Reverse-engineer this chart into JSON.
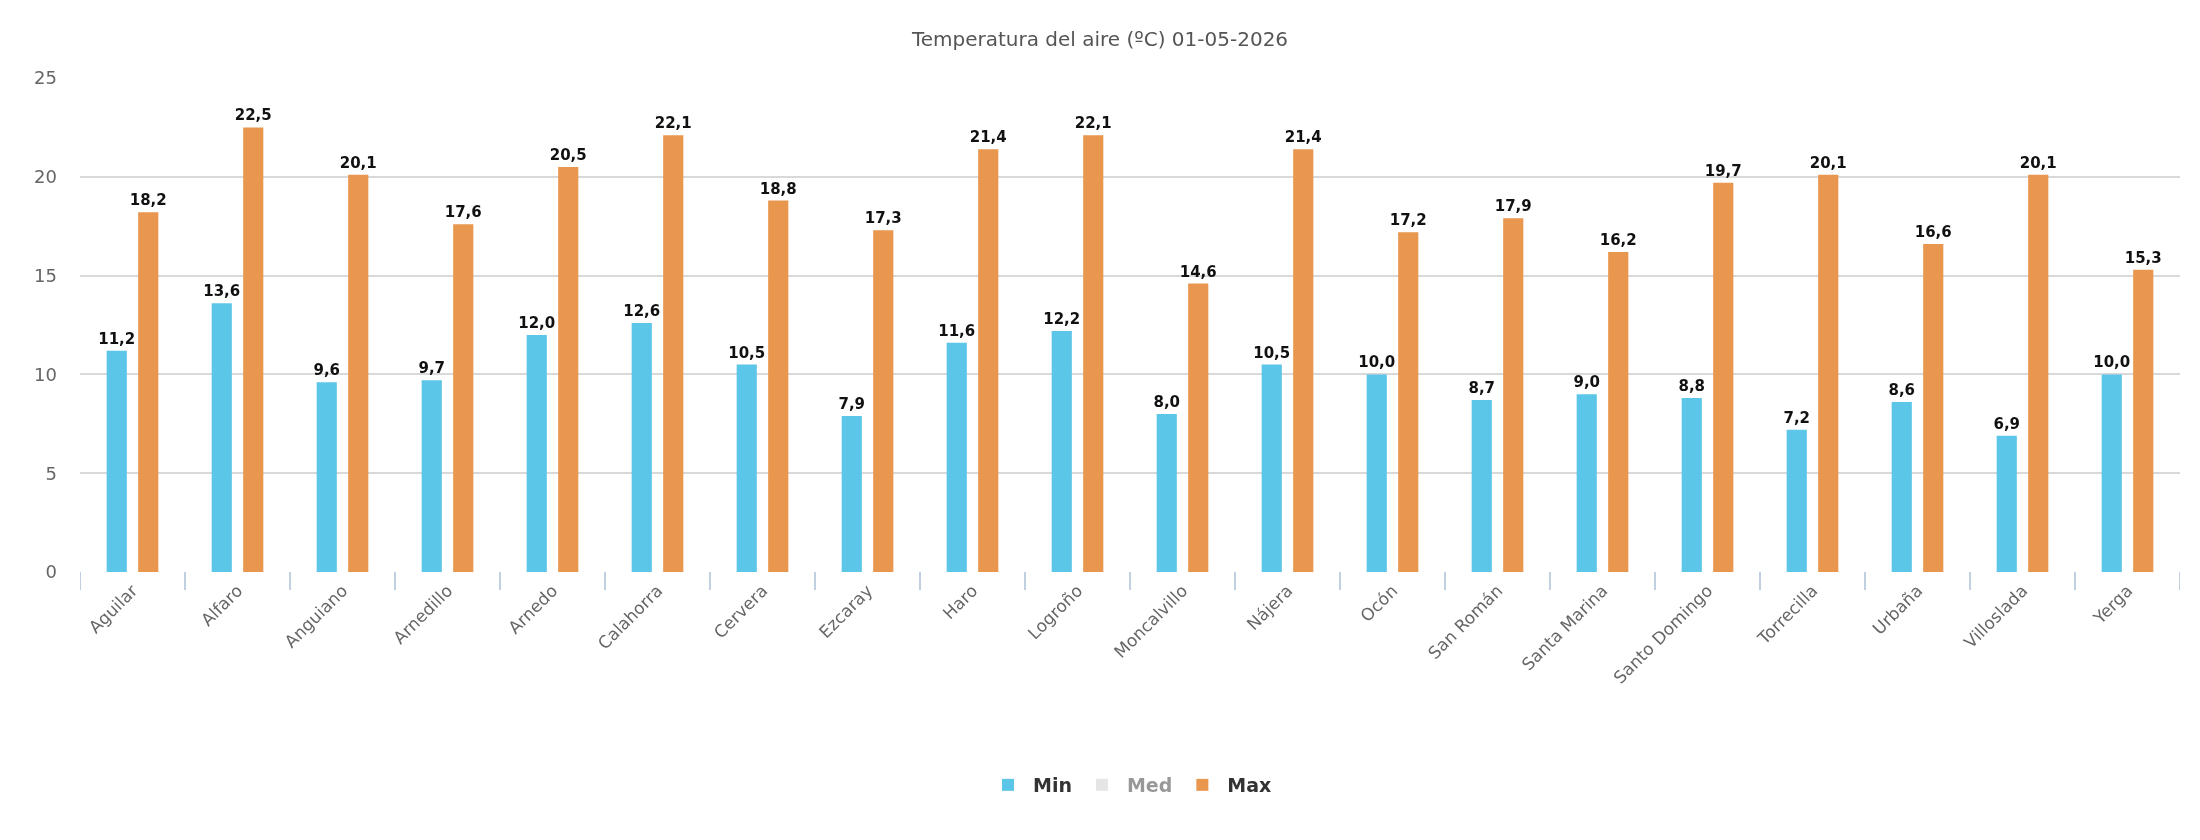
{
  "chart_data": {
    "type": "bar",
    "title": "Temperatura del aire (ºC) 01-05-2026",
    "categories": [
      "Aguilar",
      "Alfaro",
      "Anguiano",
      "Arnedillo",
      "Arnedo",
      "Calahorra",
      "Cervera",
      "Ezcaray",
      "Haro",
      "Logroño",
      "Moncalvillo",
      "Nájera",
      "Ocón",
      "San Román",
      "Santa Marina",
      "Santo Domingo",
      "Torrecilla",
      "Urbaña",
      "Villoslada",
      "Yerga"
    ],
    "series": [
      {
        "name": "Min",
        "color": "#5cc6e8",
        "values": [
          11.2,
          13.6,
          9.6,
          9.7,
          12.0,
          12.6,
          10.5,
          7.9,
          11.6,
          12.2,
          8.0,
          10.5,
          10.0,
          8.7,
          9.0,
          8.8,
          7.2,
          8.6,
          6.9,
          10.0
        ],
        "value_labels": [
          "11,2",
          "13,6",
          "9,6",
          "9,7",
          "12,0",
          "12,6",
          "10,5",
          "7,9",
          "11,6",
          "12,2",
          "8,0",
          "10,5",
          "10,0",
          "8,7",
          "9,0",
          "8,8",
          "7,2",
          "8,6",
          "6,9",
          "10,0"
        ]
      },
      {
        "name": "Med",
        "color": "#cccccc",
        "values": [
          null,
          null,
          null,
          null,
          null,
          null,
          null,
          null,
          null,
          null,
          null,
          null,
          null,
          null,
          null,
          null,
          null,
          null,
          null,
          null
        ]
      },
      {
        "name": "Max",
        "color": "#e9964e",
        "values": [
          18.2,
          22.5,
          20.1,
          17.6,
          20.5,
          22.1,
          18.8,
          17.3,
          21.4,
          22.1,
          14.6,
          21.4,
          17.2,
          17.9,
          16.2,
          19.7,
          20.1,
          16.6,
          20.1,
          15.3
        ],
        "value_labels": [
          "18,2",
          "22,5",
          "20,1",
          "17,6",
          "20,5",
          "22,1",
          "18,8",
          "17,3",
          "21,4",
          "22,1",
          "14,6",
          "21,4",
          "17,2",
          "17,9",
          "16,2",
          "19,7",
          "20,1",
          "16,6",
          "20,1",
          "15,3"
        ]
      }
    ],
    "ylim": [
      0,
      25
    ],
    "yticks": [
      0,
      5,
      10,
      15,
      20,
      25
    ],
    "grid": "y",
    "legend": "bottom"
  }
}
